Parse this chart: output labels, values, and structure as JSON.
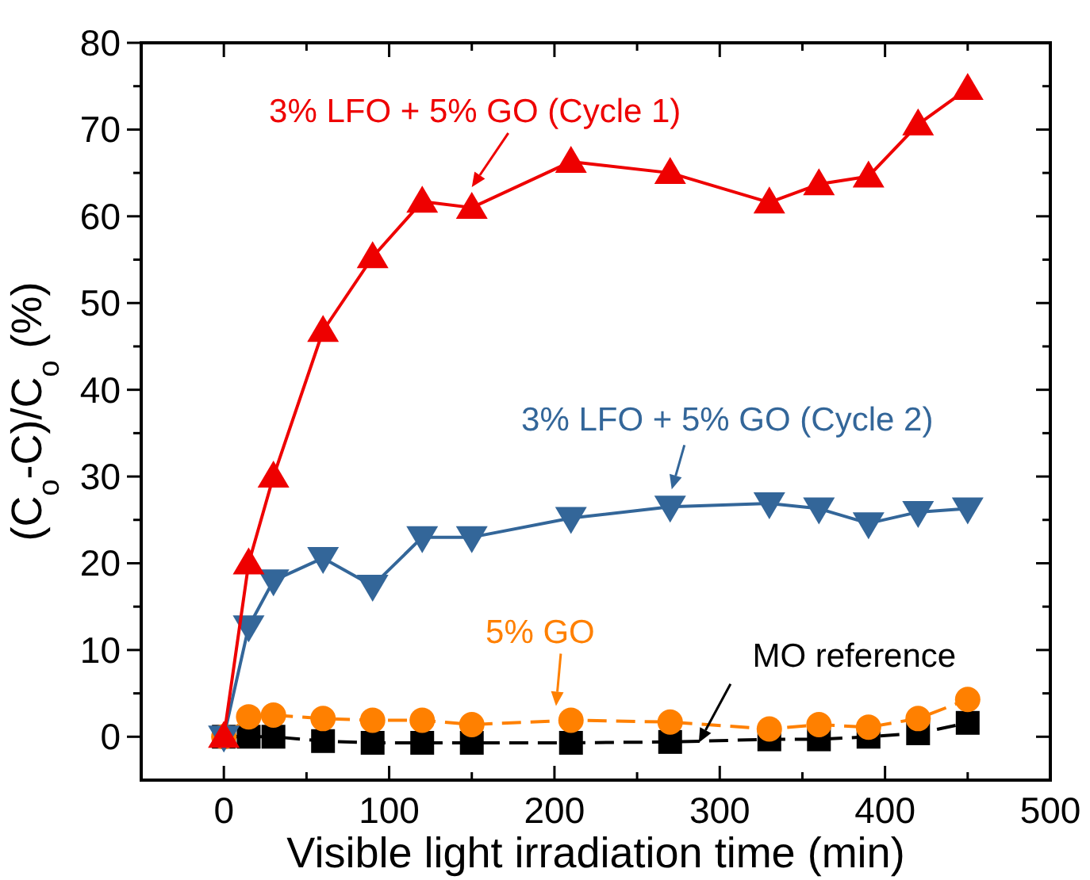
{
  "chart_data": {
    "type": "line",
    "xlabel": "Visible light irradiation time (min)",
    "ylabel": "(C$_{o}$-C)/C$_{o}$ (%)",
    "xlim": [
      -50,
      500
    ],
    "xticks": [
      0,
      {
        "value": 50,
        "label": null
      },
      100,
      {
        "value": 150,
        "label": null
      },
      200,
      {
        "value": 250,
        "label": null
      },
      300,
      {
        "value": 350,
        "label": null
      },
      400,
      {
        "value": 450,
        "label": null
      },
      500
    ],
    "ylim": [
      -5,
      80
    ],
    "yticks": [
      0,
      {
        "value": 5,
        "label": null
      },
      10,
      {
        "value": 15,
        "label": null
      },
      20,
      {
        "value": 25,
        "label": null
      },
      30,
      {
        "value": 35,
        "label": null
      },
      40,
      {
        "value": 45,
        "label": null
      },
      50,
      {
        "value": 55,
        "label": null
      },
      60,
      {
        "value": 65,
        "label": null
      },
      70,
      {
        "value": 75,
        "label": null
      },
      80
    ],
    "x": [
      0,
      15,
      30,
      60,
      90,
      120,
      150,
      210,
      270,
      330,
      360,
      390,
      420,
      450
    ],
    "series": [
      {
        "color": "#ee0000",
        "marker": "triangle",
        "line_style": "solid",
        "values": [
          0,
          20,
          30,
          46.8,
          55.3,
          61.7,
          61,
          66.3,
          65,
          61.6,
          63.7,
          64.6,
          70.6,
          74.7
        ]
      },
      {
        "color": "#336699",
        "marker": "triangle-down",
        "line_style": "solid",
        "values": [
          0,
          12.7,
          18,
          20.6,
          17.4,
          23,
          23,
          25.2,
          26.5,
          26.9,
          26.3,
          24.6,
          25.9,
          26.3
        ]
      },
      {
        "color": "#ff8000",
        "marker": "circle",
        "line_style": "dashed",
        "values": [
          0,
          2.3,
          2.5,
          2.1,
          1.9,
          1.9,
          1.4,
          1.9,
          1.7,
          0.9,
          1.4,
          1.1,
          2.1,
          4.3
        ]
      },
      {
        "color": "#000000",
        "marker": "square",
        "line_style": "dashed",
        "values": [
          0,
          0,
          0,
          -0.5,
          -0.7,
          -0.7,
          -0.7,
          -0.7,
          -0.6,
          -0.3,
          -0.3,
          0,
          0.4,
          1.6
        ]
      }
    ],
    "annotations": [
      {
        "text": "3% LFO + 5% GO (Cycle 1)",
        "x": 150,
        "y": 61
      },
      {
        "text": "3% LFO + 5% GO (Cycle 2)",
        "x": 270,
        "y": 26.5
      },
      {
        "text": "5% GO",
        "x": 200,
        "y": 1.9
      },
      {
        "text": "MO reference",
        "x": 295,
        "y": -0.5
      }
    ]
  }
}
